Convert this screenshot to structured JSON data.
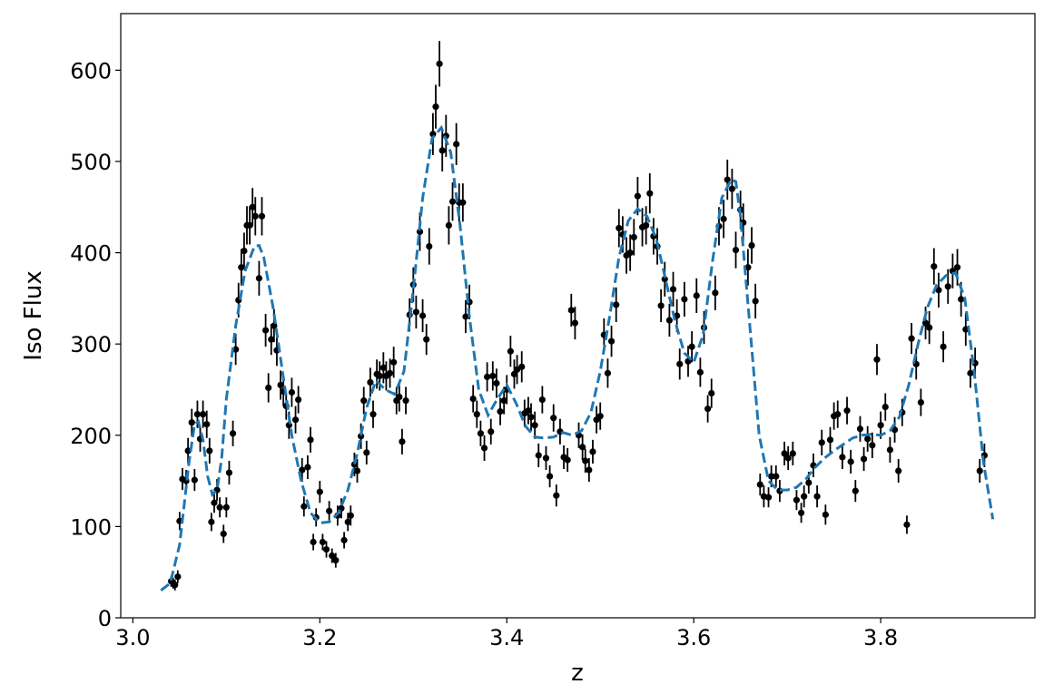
{
  "chart_data": {
    "type": "scatter",
    "xlabel": "z",
    "ylabel": "Iso Flux",
    "xlim": [
      2.987,
      3.965
    ],
    "ylim": [
      0,
      662
    ],
    "xticks": [
      {
        "value": 3,
        "label": "3.0"
      },
      3.2,
      3.4,
      3.6,
      3.8
    ],
    "yticks": [
      0,
      100,
      200,
      300,
      400,
      500,
      600
    ],
    "grid": false,
    "series": [
      {
        "type": "scatter",
        "color": "#000000",
        "x": [
          3.041,
          3.043,
          3.045,
          3.048,
          3.05,
          3.053,
          3.057,
          3.059,
          3.063,
          3.066,
          3.069,
          3.072,
          3.075,
          3.079,
          3.082,
          3.084,
          3.087,
          3.09,
          3.093,
          3.097,
          3.1,
          3.103,
          3.107,
          3.11,
          3.113,
          3.116,
          3.119,
          3.122,
          3.125,
          3.128,
          3.131,
          3.135,
          3.138,
          3.142,
          3.145,
          3.148,
          3.151,
          3.154,
          3.158,
          3.161,
          3.164,
          3.167,
          3.17,
          3.174,
          3.177,
          3.181,
          3.183,
          3.187,
          3.19,
          3.193,
          3.196,
          3.2,
          3.203,
          3.207,
          3.21,
          3.213,
          3.217,
          3.219,
          3.223,
          3.226,
          3.23,
          3.233,
          3.237,
          3.24,
          3.244,
          3.247,
          3.25,
          3.254,
          3.257,
          3.261,
          3.264,
          3.268,
          3.271,
          3.275,
          3.279,
          3.282,
          3.285,
          3.288,
          3.292,
          3.296,
          3.3,
          3.303,
          3.307,
          3.31,
          3.314,
          3.317,
          3.321,
          3.324,
          3.328,
          3.331,
          3.335,
          3.338,
          3.342,
          3.346,
          3.349,
          3.353,
          3.356,
          3.36,
          3.364,
          3.368,
          3.372,
          3.376,
          3.379,
          3.383,
          3.385,
          3.389,
          3.393,
          3.397,
          3.4,
          3.404,
          3.408,
          3.411,
          3.416,
          3.419,
          3.423,
          3.426,
          3.43,
          3.434,
          3.438,
          3.442,
          3.446,
          3.45,
          3.453,
          3.457,
          3.461,
          3.465,
          3.469,
          3.473,
          3.477,
          3.481,
          3.484,
          3.488,
          3.492,
          3.496,
          3.5,
          3.504,
          3.508,
          3.512,
          3.517,
          3.52,
          3.524,
          3.528,
          3.532,
          3.536,
          3.54,
          3.545,
          3.549,
          3.553,
          3.557,
          3.561,
          3.565,
          3.569,
          3.574,
          3.578,
          3.582,
          3.585,
          3.59,
          3.594,
          3.598,
          3.603,
          3.607,
          3.611,
          3.615,
          3.619,
          3.623,
          3.627,
          3.632,
          3.636,
          3.641,
          3.645,
          3.65,
          3.653,
          3.658,
          3.662,
          3.666,
          3.671,
          3.675,
          3.68,
          3.683,
          3.688,
          3.692,
          3.697,
          3.701,
          3.706,
          3.71,
          3.715,
          3.718,
          3.723,
          3.728,
          3.732,
          3.737,
          3.741,
          3.746,
          3.75,
          3.754,
          3.759,
          3.764,
          3.768,
          3.773,
          3.778,
          3.782,
          3.786,
          3.791,
          3.796,
          3.8,
          3.805,
          3.81,
          3.815,
          3.819,
          3.823,
          3.828,
          3.833,
          3.838,
          3.843,
          3.848,
          3.852,
          3.857,
          3.862,
          3.867,
          3.872,
          3.877,
          3.882,
          3.886,
          3.891,
          3.896,
          3.901,
          3.906,
          3.911
        ],
        "values": [
          40,
          38,
          36,
          45,
          106,
          152,
          150,
          183,
          214,
          151,
          223,
          196,
          223,
          212,
          183,
          105,
          126,
          140,
          121,
          92,
          121,
          159,
          202,
          294,
          348,
          384,
          402,
          430,
          430,
          450,
          440,
          372,
          440,
          315,
          252,
          305,
          320,
          293,
          255,
          248,
          232,
          211,
          247,
          217,
          239,
          162,
          122,
          165,
          195,
          83,
          110,
          138,
          83,
          75,
          117,
          68,
          63,
          112,
          120,
          85,
          105,
          112,
          168,
          161,
          199,
          238,
          181,
          258,
          223,
          267,
          265,
          274,
          265,
          268,
          280,
          238,
          242,
          193,
          238,
          332,
          365,
          335,
          423,
          331,
          305,
          407,
          530,
          560,
          607,
          512,
          528,
          430,
          456,
          519,
          455,
          455,
          330,
          346,
          240,
          223,
          202,
          186,
          264,
          204,
          265,
          257,
          226,
          238,
          250,
          292,
          267,
          272,
          275,
          224,
          227,
          220,
          211,
          178,
          239,
          175,
          155,
          219,
          134,
          204,
          176,
          173,
          337,
          323,
          200,
          187,
          172,
          162,
          182,
          217,
          221,
          310,
          268,
          303,
          343,
          427,
          420,
          397,
          400,
          417,
          462,
          428,
          430,
          465,
          418,
          407,
          342,
          371,
          326,
          360,
          331,
          278,
          349,
          281,
          297,
          353,
          269,
          318,
          229,
          246,
          356,
          429,
          437,
          480,
          470,
          403,
          447,
          433,
          384,
          408,
          347,
          146,
          133,
          132,
          155,
          155,
          139,
          180,
          175,
          180,
          129,
          115,
          133,
          148,
          167,
          133,
          192,
          113,
          195,
          221,
          223,
          176,
          227,
          171,
          139,
          207,
          174,
          196,
          189,
          283,
          211,
          231,
          184,
          206,
          161,
          225,
          102,
          306,
          278,
          236,
          323,
          318,
          385,
          359,
          297,
          363,
          380,
          384,
          349,
          316,
          268,
          279,
          161,
          178
        ],
        "errors": [
          6,
          6,
          6,
          7,
          10,
          12,
          12,
          14,
          15,
          12,
          15,
          14,
          15,
          15,
          14,
          10,
          11,
          12,
          11,
          10,
          11,
          13,
          14,
          17,
          19,
          20,
          20,
          21,
          21,
          21,
          21,
          19,
          21,
          18,
          16,
          17,
          18,
          17,
          16,
          16,
          15,
          15,
          16,
          15,
          15,
          13,
          11,
          13,
          14,
          9,
          10,
          12,
          9,
          9,
          11,
          8,
          8,
          11,
          11,
          9,
          10,
          11,
          13,
          13,
          14,
          15,
          13,
          16,
          15,
          16,
          16,
          17,
          16,
          16,
          17,
          15,
          16,
          14,
          15,
          18,
          19,
          18,
          21,
          18,
          17,
          20,
          23,
          24,
          25,
          23,
          23,
          21,
          21,
          23,
          21,
          21,
          18,
          19,
          15,
          15,
          14,
          14,
          16,
          14,
          16,
          16,
          15,
          15,
          16,
          17,
          16,
          16,
          17,
          15,
          15,
          15,
          15,
          13,
          15,
          13,
          12,
          15,
          12,
          14,
          13,
          13,
          18,
          18,
          14,
          14,
          13,
          13,
          13,
          15,
          15,
          18,
          16,
          17,
          19,
          21,
          20,
          20,
          20,
          20,
          21,
          21,
          21,
          22,
          20,
          20,
          18,
          19,
          18,
          19,
          18,
          17,
          19,
          17,
          17,
          19,
          16,
          18,
          15,
          16,
          19,
          21,
          21,
          22,
          22,
          20,
          21,
          21,
          20,
          20,
          19,
          12,
          12,
          11,
          12,
          12,
          12,
          13,
          13,
          13,
          11,
          11,
          12,
          12,
          13,
          12,
          14,
          11,
          14,
          15,
          15,
          13,
          15,
          13,
          12,
          14,
          13,
          14,
          14,
          17,
          15,
          15,
          14,
          14,
          13,
          15,
          10,
          17,
          17,
          15,
          18,
          18,
          20,
          19,
          17,
          19,
          19,
          20,
          19,
          18,
          16,
          17,
          13,
          13
        ]
      },
      {
        "type": "line",
        "color": "#1f77b4",
        "dashed": true,
        "x": [
          3.03,
          3.04,
          3.05,
          3.06,
          3.066,
          3.07,
          3.075,
          3.08,
          3.085,
          3.09,
          3.095,
          3.1,
          3.11,
          3.12,
          3.13,
          3.135,
          3.14,
          3.15,
          3.16,
          3.17,
          3.18,
          3.19,
          3.2,
          3.21,
          3.22,
          3.23,
          3.24,
          3.25,
          3.26,
          3.27,
          3.28,
          3.29,
          3.3,
          3.31,
          3.32,
          3.33,
          3.34,
          3.35,
          3.36,
          3.37,
          3.38,
          3.39,
          3.4,
          3.41,
          3.42,
          3.43,
          3.44,
          3.45,
          3.46,
          3.47,
          3.48,
          3.49,
          3.5,
          3.51,
          3.52,
          3.53,
          3.54,
          3.55,
          3.56,
          3.57,
          3.58,
          3.59,
          3.6,
          3.61,
          3.62,
          3.63,
          3.64,
          3.645,
          3.65,
          3.66,
          3.67,
          3.68,
          3.69,
          3.7,
          3.71,
          3.72,
          3.73,
          3.74,
          3.75,
          3.76,
          3.77,
          3.78,
          3.79,
          3.8,
          3.81,
          3.82,
          3.83,
          3.84,
          3.85,
          3.86,
          3.87,
          3.88,
          3.89,
          3.9,
          3.91,
          3.92
        ],
        "values": [
          30,
          38,
          80,
          170,
          212,
          215,
          195,
          155,
          135,
          140,
          175,
          240,
          320,
          380,
          407,
          408,
          395,
          340,
          270,
          200,
          150,
          115,
          104,
          105,
          115,
          140,
          180,
          230,
          260,
          250,
          245,
          270,
          360,
          460,
          525,
          537,
          510,
          430,
          330,
          250,
          222,
          240,
          255,
          235,
          210,
          198,
          197,
          198,
          203,
          200,
          205,
          225,
          270,
          330,
          395,
          435,
          448,
          440,
          415,
          370,
          325,
          290,
          280,
          310,
          390,
          460,
          480,
          478,
          440,
          320,
          200,
          150,
          140,
          140,
          143,
          152,
          165,
          175,
          183,
          190,
          197,
          200,
          201,
          200,
          205,
          220,
          255,
          300,
          340,
          365,
          375,
          378,
          350,
          270,
          170,
          108
        ]
      }
    ]
  }
}
